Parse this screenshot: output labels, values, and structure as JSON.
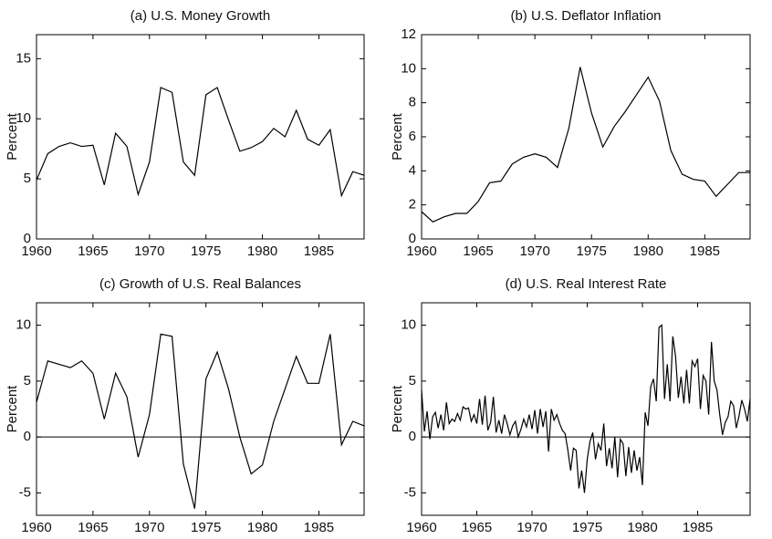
{
  "chart_data": [
    {
      "type": "line",
      "title": "(a) U.S. Money Growth",
      "ylabel": "Percent",
      "x": [
        1960,
        1961,
        1962,
        1963,
        1964,
        1965,
        1966,
        1967,
        1968,
        1969,
        1970,
        1971,
        1972,
        1973,
        1974,
        1975,
        1976,
        1977,
        1978,
        1979,
        1980,
        1981,
        1982,
        1983,
        1984,
        1985,
        1986,
        1987,
        1988,
        1989
      ],
      "values": [
        4.9,
        7.1,
        7.7,
        8.0,
        7.7,
        7.8,
        4.5,
        8.8,
        7.7,
        3.7,
        6.4,
        12.6,
        12.2,
        6.4,
        5.3,
        12.0,
        12.6,
        9.9,
        7.3,
        7.6,
        8.1,
        9.2,
        8.5,
        10.7,
        8.3,
        7.8,
        9.1,
        3.6,
        5.6,
        5.3
      ],
      "color": "#000000",
      "xlim": [
        1960,
        1989
      ],
      "xticks": [
        1960,
        1965,
        1970,
        1975,
        1980,
        1985
      ],
      "ylim": [
        0,
        17
      ],
      "yticks": [
        0,
        5,
        10,
        15
      ]
    },
    {
      "type": "line",
      "title": "(b) U.S. Deflator Inflation",
      "ylabel": "Percent",
      "x": [
        1960,
        1961,
        1962,
        1963,
        1964,
        1965,
        1966,
        1967,
        1968,
        1969,
        1970,
        1971,
        1972,
        1973,
        1974,
        1975,
        1976,
        1977,
        1978,
        1979,
        1980,
        1981,
        1982,
        1983,
        1984,
        1985,
        1986,
        1987,
        1988,
        1989
      ],
      "values": [
        1.6,
        1.0,
        1.3,
        1.5,
        1.5,
        2.2,
        3.3,
        3.4,
        4.4,
        4.8,
        5.0,
        4.8,
        4.2,
        6.5,
        10.1,
        7.4,
        5.4,
        6.6,
        7.5,
        8.5,
        9.5,
        8.1,
        5.2,
        3.8,
        3.5,
        3.4,
        2.5,
        3.2,
        3.9,
        3.9
      ],
      "color": "#000000",
      "xlim": [
        1960,
        1989
      ],
      "xticks": [
        1960,
        1965,
        1970,
        1975,
        1980,
        1985
      ],
      "ylim": [
        0,
        12
      ],
      "yticks": [
        0,
        2,
        4,
        6,
        8,
        10,
        12
      ]
    },
    {
      "type": "line",
      "title": "(c) Growth of U.S. Real Balances",
      "ylabel": "Percent",
      "x": [
        1960,
        1961,
        1962,
        1963,
        1964,
        1965,
        1966,
        1967,
        1968,
        1969,
        1970,
        1971,
        1972,
        1973,
        1974,
        1975,
        1976,
        1977,
        1978,
        1979,
        1980,
        1981,
        1982,
        1983,
        1984,
        1985,
        1986,
        1987,
        1988,
        1989
      ],
      "values": [
        3.1,
        6.8,
        6.5,
        6.2,
        6.8,
        5.7,
        1.6,
        5.7,
        3.6,
        -1.8,
        2.0,
        9.2,
        9.0,
        -2.4,
        -6.4,
        5.2,
        7.6,
        4.3,
        0.0,
        -3.3,
        -2.5,
        1.4,
        4.3,
        7.2,
        4.8,
        4.8,
        9.2,
        -0.7,
        1.4,
        1.0
      ],
      "color": "#000000",
      "xlim": [
        1960,
        1989
      ],
      "xticks": [
        1960,
        1965,
        1970,
        1975,
        1980,
        1985
      ],
      "ylim": [
        -7,
        12
      ],
      "yticks": [
        -5,
        0,
        5,
        10
      ],
      "hline": 0
    },
    {
      "type": "line",
      "title": "(d) U.S. Real Interest Rate",
      "ylabel": "Percent",
      "x": [
        1960,
        1960.25,
        1960.5,
        1960.75,
        1961,
        1961.25,
        1961.5,
        1961.75,
        1962,
        1962.25,
        1962.5,
        1962.75,
        1963,
        1963.25,
        1963.5,
        1963.75,
        1964,
        1964.25,
        1964.5,
        1964.75,
        1965,
        1965.25,
        1965.5,
        1965.75,
        1966,
        1966.25,
        1966.5,
        1966.75,
        1967,
        1967.25,
        1967.5,
        1967.75,
        1968,
        1968.25,
        1968.5,
        1968.75,
        1969,
        1969.25,
        1969.5,
        1969.75,
        1970,
        1970.25,
        1970.5,
        1970.75,
        1971,
        1971.25,
        1971.5,
        1971.75,
        1972,
        1972.25,
        1972.5,
        1972.75,
        1973,
        1973.25,
        1973.5,
        1973.75,
        1974,
        1974.25,
        1974.5,
        1974.75,
        1975,
        1975.25,
        1975.5,
        1975.75,
        1976,
        1976.25,
        1976.5,
        1976.75,
        1977,
        1977.25,
        1977.5,
        1977.75,
        1978,
        1978.25,
        1978.5,
        1978.75,
        1979,
        1979.25,
        1979.5,
        1979.75,
        1980,
        1980.25,
        1980.5,
        1980.75,
        1981,
        1981.25,
        1981.5,
        1981.75,
        1982,
        1982.25,
        1982.5,
        1982.75,
        1983,
        1983.25,
        1983.5,
        1983.75,
        1984,
        1984.25,
        1984.5,
        1984.75,
        1985,
        1985.25,
        1985.5,
        1985.75,
        1986,
        1986.25,
        1986.5,
        1986.75,
        1987,
        1987.25,
        1987.5,
        1987.75,
        1988,
        1988.25,
        1988.5,
        1988.75,
        1989,
        1989.25,
        1989.5,
        1989.75
      ],
      "values": [
        4.2,
        0.5,
        2.3,
        -0.2,
        1.8,
        2.2,
        0.8,
        2.0,
        0.6,
        3.1,
        1.2,
        1.6,
        1.4,
        2.1,
        1.5,
        2.7,
        2.5,
        2.6,
        1.4,
        2.0,
        1.2,
        3.4,
        1.1,
        3.7,
        0.6,
        1.3,
        3.6,
        0.4,
        1.5,
        0.3,
        2.0,
        1.2,
        0.2,
        1.0,
        1.4,
        0.0,
        0.7,
        1.6,
        0.9,
        2.0,
        0.7,
        2.4,
        0.3,
        2.5,
        0.9,
        2.3,
        -1.3,
        2.5,
        1.5,
        2.0,
        1.2,
        0.6,
        0.3,
        -1.2,
        -3.0,
        -1.0,
        -1.2,
        -4.6,
        -3.0,
        -5.0,
        -2.0,
        -0.4,
        0.4,
        -2.0,
        -0.6,
        -1.2,
        1.2,
        -2.6,
        -1.0,
        -2.8,
        0.0,
        -3.6,
        -0.2,
        -0.6,
        -3.5,
        -0.9,
        -3.2,
        -1.2,
        -3.0,
        -1.8,
        -4.3,
        2.2,
        1.0,
        4.5,
        5.2,
        3.2,
        9.8,
        10.0,
        3.4,
        6.5,
        3.2,
        9.0,
        7.2,
        3.5,
        5.4,
        3.0,
        6.0,
        3.0,
        6.8,
        6.3,
        7.0,
        2.5,
        5.5,
        5.0,
        2.0,
        8.5,
        5.0,
        4.2,
        2.0,
        0.2,
        1.3,
        1.8,
        3.2,
        2.8,
        0.8,
        1.9,
        3.3,
        2.5,
        1.4,
        3.4
      ],
      "color": "#000000",
      "xlim": [
        1960,
        1989.75
      ],
      "xticks": [
        1960,
        1965,
        1970,
        1975,
        1980,
        1985
      ],
      "ylim": [
        -7,
        12
      ],
      "yticks": [
        -5,
        0,
        5,
        10
      ],
      "hline": 0
    }
  ]
}
